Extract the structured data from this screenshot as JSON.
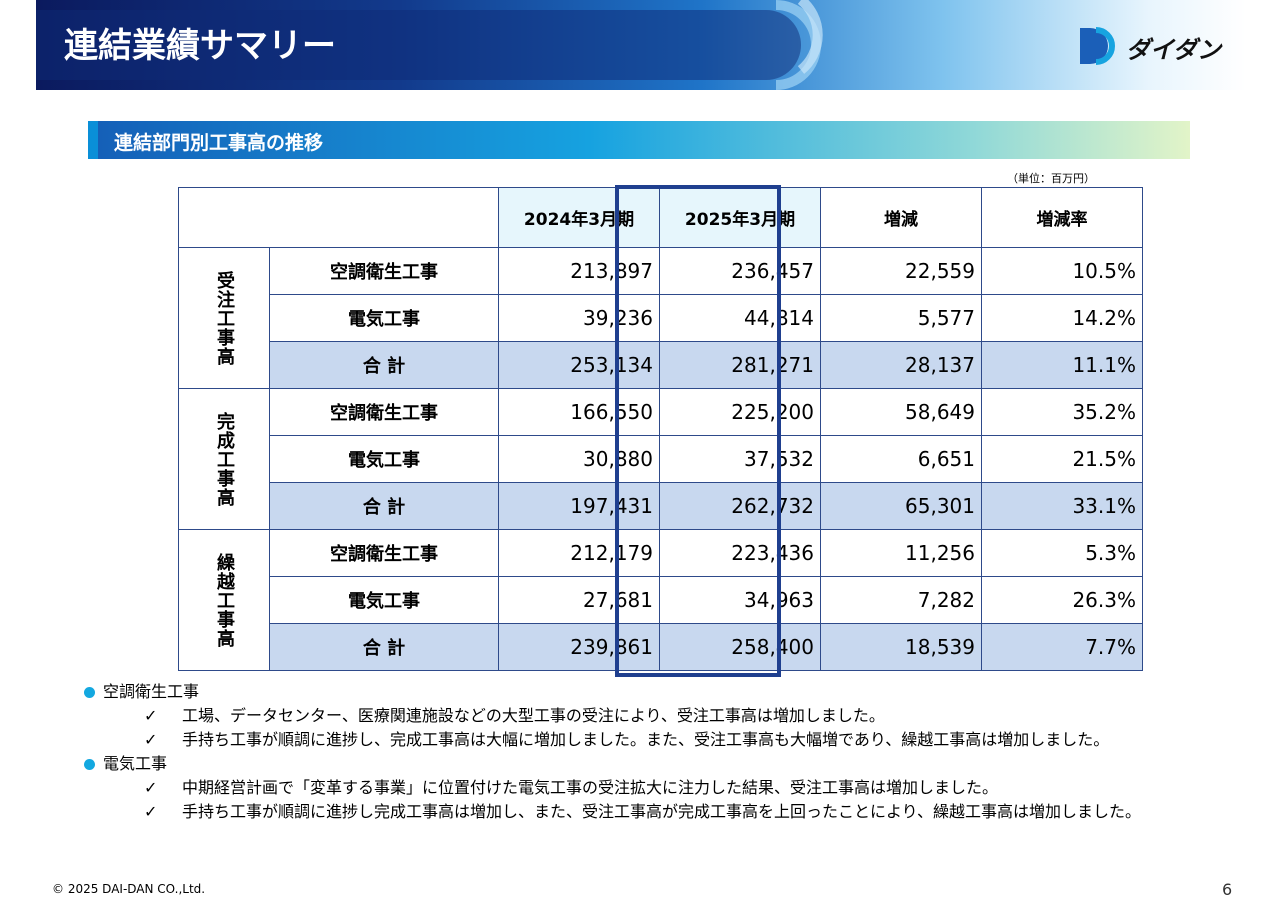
{
  "header": {
    "title": "連結業績サマリー",
    "logo": "ダイダン"
  },
  "section": {
    "title": "連結部門別工事高の推移",
    "unit": "（単位：百万円）"
  },
  "table": {
    "columns": [
      "2024年3月期",
      "2025年3月期",
      "増減",
      "増減率"
    ],
    "groups": [
      {
        "label": "受注工事高",
        "rows": [
          [
            "空調衛生工事",
            "213,897",
            "236,457",
            "22,559",
            "10.5%"
          ],
          [
            "電気工事",
            "39,236",
            "44,814",
            "5,577",
            "14.2%"
          ],
          [
            "合 計",
            "253,134",
            "281,271",
            "28,137",
            "11.1%"
          ]
        ]
      },
      {
        "label": "完成工事高",
        "rows": [
          [
            "空調衛生工事",
            "166,550",
            "225,200",
            "58,649",
            "35.2%"
          ],
          [
            "電気工事",
            "30,880",
            "37,532",
            "6,651",
            "21.5%"
          ],
          [
            "合 計",
            "197,431",
            "262,732",
            "65,301",
            "33.1%"
          ]
        ]
      },
      {
        "label": "繰越工事高",
        "rows": [
          [
            "空調衛生工事",
            "212,179",
            "223,436",
            "11,256",
            "5.3%"
          ],
          [
            "電気工事",
            "27,681",
            "34,963",
            "7,282",
            "26.3%"
          ],
          [
            "合 計",
            "239,861",
            "258,400",
            "18,539",
            "7.7%"
          ]
        ]
      }
    ]
  },
  "notes": [
    {
      "heading": "空調衛生工事",
      "items": [
        "工場、データセンター、医療関連施設などの大型工事の受注により、受注工事高は増加しました。",
        "手持ち工事が順調に進捗し、完成工事高は大幅に増加しました。また、受注工事高も大幅増であり、繰越工事高は増加しました。"
      ]
    },
    {
      "heading": "電気工事",
      "items": [
        "中期経営計画で「変革する事業」に位置付けた電気工事の受注拡大に注力した結果、受注工事高は増加しました。",
        "手持ち工事が順調に進捗し完成工事高は増加し、また、受注工事高が完成工事高を上回ったことにより、繰越工事高は増加しました。"
      ]
    }
  ],
  "footer": {
    "copyright": "© 2025 DAI-DAN CO.,Ltd.",
    "page": "6"
  }
}
